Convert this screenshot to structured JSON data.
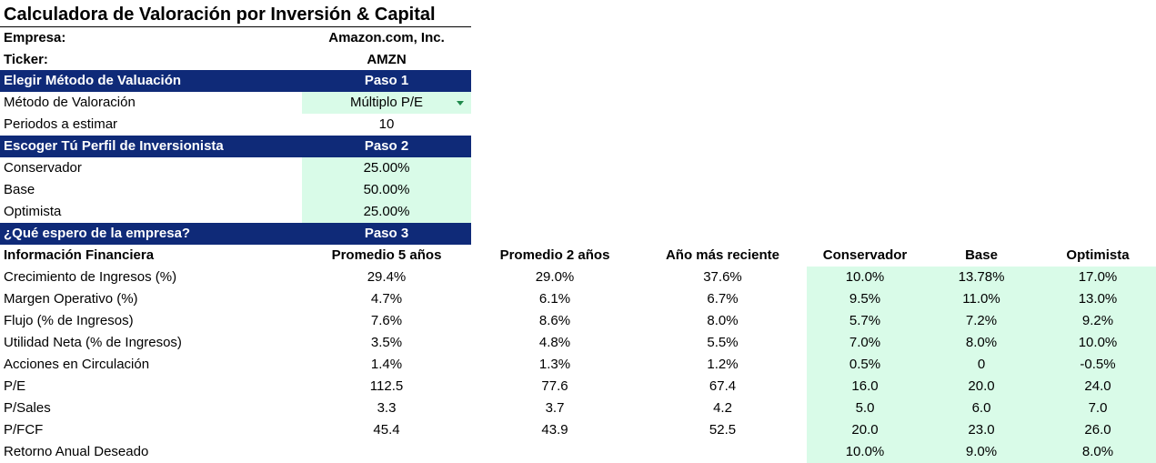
{
  "title": "Calculadora de Valoración por Inversión & Capital",
  "company": {
    "label": "Empresa:",
    "value": "Amazon.com, Inc."
  },
  "ticker": {
    "label": "Ticker:",
    "value": "AMZN"
  },
  "step1": {
    "title": "Elegir Método de Valuación",
    "step": "Paso 1"
  },
  "method": {
    "label": "Método de Valoración",
    "value": "Múltiplo P/E"
  },
  "periods": {
    "label": "Periodos a estimar",
    "value": "10"
  },
  "step2": {
    "title": "Escoger Tú Perfil de Inversionista",
    "step": "Paso 2"
  },
  "profiles": [
    {
      "label": "Conservador",
      "value": "25.00%"
    },
    {
      "label": "Base",
      "value": "50.00%"
    },
    {
      "label": "Optimista",
      "value": "25.00%"
    }
  ],
  "step3": {
    "title": "¿Qué espero de la empresa?",
    "step": "Paso 3"
  },
  "table": {
    "headers": [
      "Información Financiera",
      "Promedio 5 años",
      "Promedio 2 años",
      "Año más reciente",
      "Conservador",
      "Base",
      "Optimista"
    ],
    "rows": [
      [
        "Crecimiento de Ingresos (%)",
        "29.4%",
        "29.0%",
        "37.6%",
        "10.0%",
        "13.78%",
        "17.0%"
      ],
      [
        "Margen Operativo (%)",
        "4.7%",
        "6.1%",
        "6.7%",
        "9.5%",
        "11.0%",
        "13.0%"
      ],
      [
        "Flujo (% de Ingresos)",
        "7.6%",
        "8.6%",
        "8.0%",
        "5.7%",
        "7.2%",
        "9.2%"
      ],
      [
        "Utilidad Neta (% de Ingresos)",
        "3.5%",
        "4.8%",
        "5.5%",
        "7.0%",
        "8.0%",
        "10.0%"
      ],
      [
        "Acciones en Circulación",
        "1.4%",
        "1.3%",
        "1.2%",
        "0.5%",
        "0",
        "-0.5%"
      ],
      [
        "P/E",
        "112.5",
        "77.6",
        "67.4",
        "16.0",
        "20.0",
        "24.0"
      ],
      [
        "P/Sales",
        "3.3",
        "3.7",
        "4.2",
        "5.0",
        "6.0",
        "7.0"
      ],
      [
        "P/FCF",
        "45.4",
        "43.9",
        "52.5",
        "20.0",
        "23.0",
        "26.0"
      ],
      [
        "Retorno Anual Deseado",
        "",
        "",
        "",
        "10.0%",
        "9.0%",
        "8.0%"
      ]
    ]
  },
  "colors": {
    "header_band": "#0f2a78",
    "input_fill": "#d9fbe8",
    "dropdown_caret": "#1f8a4c"
  }
}
